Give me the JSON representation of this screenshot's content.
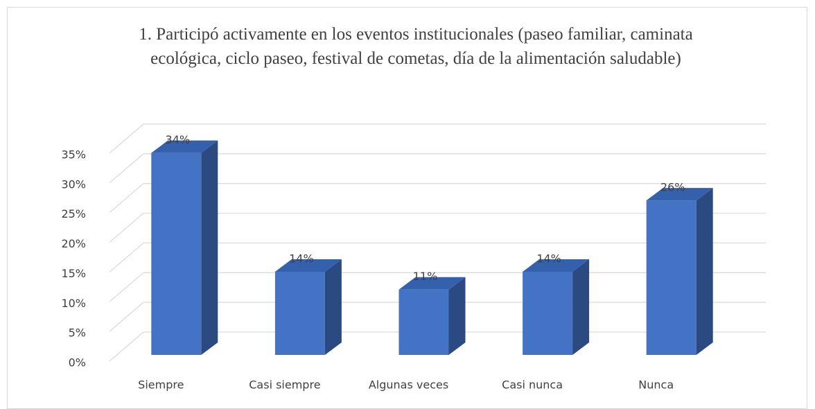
{
  "chart_data": {
    "type": "bar3d",
    "title": "1. Participó activamente en los eventos institucionales (paseo familiar, caminata ecológica, ciclo paseo, festival de cometas, día de la alimentación saludable)",
    "categories": [
      "Siempre",
      "Casi siempre",
      "Algunas veces",
      "Casi nunca",
      "Nunca"
    ],
    "values": [
      34,
      14,
      11,
      14,
      26
    ],
    "value_labels": [
      "34%",
      "14%",
      "11%",
      "14%",
      "26%"
    ],
    "color": "#4472c4",
    "ylim": [
      0,
      35
    ],
    "yticks": [
      {
        "value": 0,
        "label": "0%"
      },
      {
        "value": 5,
        "label": "5%"
      },
      {
        "value": 10,
        "label": "10%"
      },
      {
        "value": 15,
        "label": "15%"
      },
      {
        "value": 20,
        "label": "20%"
      },
      {
        "value": 25,
        "label": "25%"
      },
      {
        "value": 30,
        "label": "30%"
      },
      {
        "value": 35,
        "label": "35%"
      }
    ],
    "grid": true
  }
}
